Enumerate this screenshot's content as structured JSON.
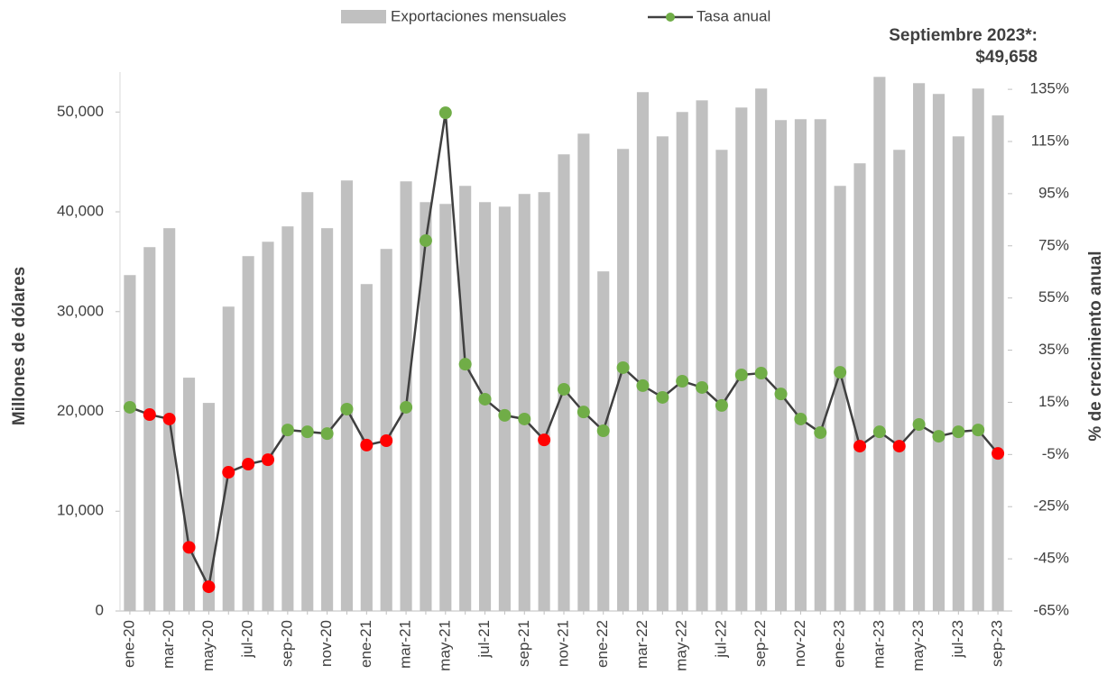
{
  "chart_data": {
    "type": "bar_line",
    "categories": [
      "ene-20",
      null,
      "mar-20",
      null,
      "may-20",
      null,
      "jul-20",
      null,
      "sep-20",
      null,
      "nov-20",
      null,
      "ene-21",
      null,
      "mar-21",
      null,
      "may-21",
      null,
      "jul-21",
      null,
      "sep-21",
      null,
      "nov-21",
      null,
      "ene-22",
      null,
      "mar-22",
      null,
      "may-22",
      null,
      "jul-22",
      null,
      "sep-22",
      null,
      "nov-22",
      null,
      "ene-23",
      null,
      "mar-23",
      null,
      "may-23",
      null,
      "jul-23",
      null,
      "sep-23"
    ],
    "series": [
      {
        "name": "Exportaciones mensuales",
        "color": "#c0c0c0",
        "type": "bar",
        "values": [
          33660,
          36460,
          38360,
          23380,
          20850,
          30500,
          35560,
          37000,
          38540,
          41970,
          38360,
          43140,
          32760,
          36280,
          43050,
          40970,
          40790,
          42600,
          40970,
          40520,
          41790,
          41970,
          45760,
          47830,
          34030,
          46300,
          51990,
          47560,
          50000,
          51170,
          46210,
          50450,
          52350,
          49190,
          49280,
          49280,
          42600,
          44860,
          53520,
          46210,
          52890,
          51810,
          47560,
          52350,
          49658
        ]
      },
      {
        "name": "Tasa anual",
        "color": "#404040",
        "type": "line",
        "axis": "y2",
        "marker_color": "#70ad47",
        "values": [
          13.1,
          10.3,
          8.6,
          -40.6,
          -55.7,
          -11.8,
          -8.7,
          -7.0,
          4.4,
          3.7,
          3.0,
          12.4,
          -1.4,
          0.3,
          13.1,
          77.0,
          126.0,
          29.6,
          16.2,
          10.0,
          8.6,
          0.6,
          20.0,
          11.3,
          4.1,
          28.3,
          21.4,
          16.9,
          23.1,
          20.7,
          13.8,
          25.5,
          26.2,
          18.2,
          8.6,
          3.4,
          26.5,
          -1.8,
          3.7,
          -1.8,
          6.5,
          2.0,
          3.7,
          4.4,
          -4.6
        ],
        "marker_colors": [
          "#70ad47",
          "#ff0000",
          "#ff0000",
          "#ff0000",
          "#ff0000",
          "#ff0000",
          "#ff0000",
          "#ff0000",
          "#70ad47",
          "#70ad47",
          "#70ad47",
          "#70ad47",
          "#ff0000",
          "#ff0000",
          "#70ad47",
          "#70ad47",
          "#70ad47",
          "#70ad47",
          "#70ad47",
          "#70ad47",
          "#70ad47",
          "#ff0000",
          "#70ad47",
          "#70ad47",
          "#70ad47",
          "#70ad47",
          "#70ad47",
          "#70ad47",
          "#70ad47",
          "#70ad47",
          "#70ad47",
          "#70ad47",
          "#70ad47",
          "#70ad47",
          "#70ad47",
          "#70ad47",
          "#70ad47",
          "#ff0000",
          "#70ad47",
          "#ff0000",
          "#70ad47",
          "#70ad47",
          "#70ad47",
          "#70ad47",
          "#ff0000"
        ]
      }
    ],
    "ylabel": "Millones de dólares",
    "y2label": "% de crecimiento anual",
    "annotation": [
      "Septiembre 2023*:",
      "$49,658"
    ],
    "ylim": [
      0,
      54000
    ],
    "yticks": [
      0,
      {
        "value": 10000,
        "label": "10,000"
      },
      {
        "value": 20000,
        "label": "20,000"
      },
      {
        "value": 30000,
        "label": "30,000"
      },
      {
        "value": 40000,
        "label": "40,000"
      },
      {
        "value": 50000,
        "label": "50,000"
      }
    ],
    "y2lim": [
      -65,
      141.6
    ],
    "y2ticks": [
      {
        "value": -65,
        "label": "-65%"
      },
      {
        "value": -45,
        "label": "-45%"
      },
      {
        "value": -25,
        "label": "-25%"
      },
      {
        "value": -5,
        "label": "-5%"
      },
      {
        "value": 15,
        "label": "15%"
      },
      {
        "value": 35,
        "label": "35%"
      },
      {
        "value": 55,
        "label": "55%"
      },
      {
        "value": 75,
        "label": "75%"
      },
      {
        "value": 95,
        "label": "95%"
      },
      {
        "value": 115,
        "label": "115%"
      },
      {
        "value": 135,
        "label": "135%"
      }
    ],
    "grid": false,
    "legend": "top"
  }
}
